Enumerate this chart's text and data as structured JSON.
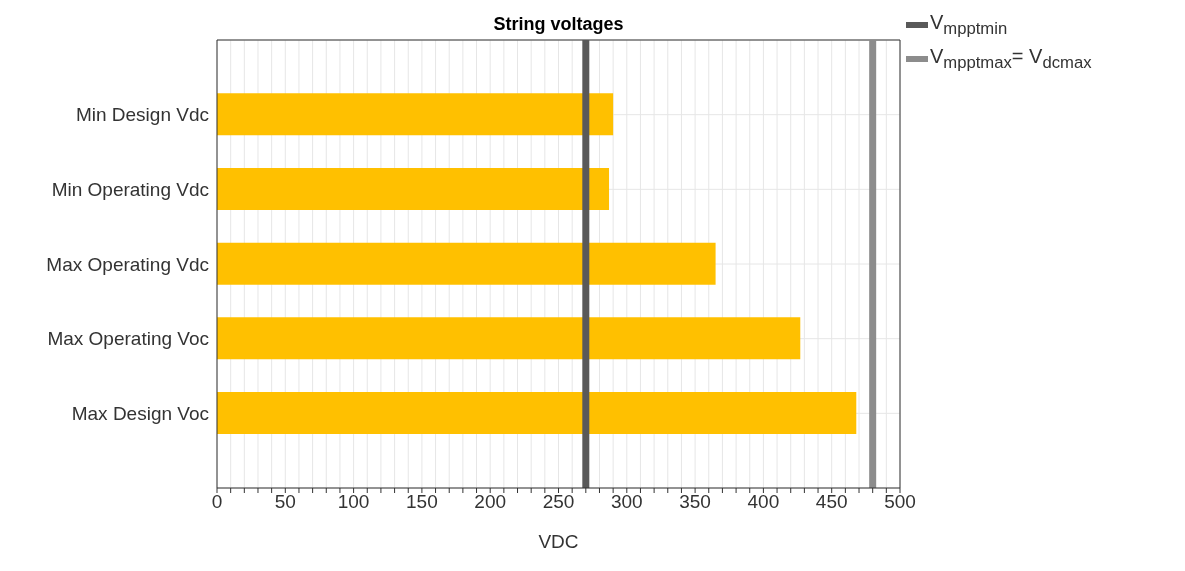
{
  "chart_data": {
    "type": "bar",
    "orientation": "horizontal",
    "title": "String voltages",
    "xlabel": "VDC",
    "categories": [
      "Min Design Vdc",
      "Min Operating Vdc",
      "Max Operating Vdc",
      "Max Operating Voc",
      "Max Design Voc"
    ],
    "values": [
      290,
      287,
      365,
      427,
      468
    ],
    "color": "#ffc000",
    "xlim": [
      0,
      500
    ],
    "xticks": [
      0,
      {
        "value": 10,
        "label": null
      },
      {
        "value": 20,
        "label": null
      },
      {
        "value": 30,
        "label": null
      },
      {
        "value": 40,
        "label": null
      },
      50,
      {
        "value": 60,
        "label": null
      },
      {
        "value": 70,
        "label": null
      },
      {
        "value": 80,
        "label": null
      },
      {
        "value": 90,
        "label": null
      },
      100,
      {
        "value": 110,
        "label": null
      },
      {
        "value": 120,
        "label": null
      },
      {
        "value": 130,
        "label": null
      },
      {
        "value": 140,
        "label": null
      },
      150,
      {
        "value": 160,
        "label": null
      },
      {
        "value": 170,
        "label": null
      },
      {
        "value": 180,
        "label": null
      },
      {
        "value": 190,
        "label": null
      },
      200,
      {
        "value": 210,
        "label": null
      },
      {
        "value": 220,
        "label": null
      },
      {
        "value": 230,
        "label": null
      },
      {
        "value": 240,
        "label": null
      },
      250,
      {
        "value": 260,
        "label": null
      },
      {
        "value": 270,
        "label": null
      },
      {
        "value": 280,
        "label": null
      },
      {
        "value": 290,
        "label": null
      },
      300,
      {
        "value": 310,
        "label": null
      },
      {
        "value": 320,
        "label": null
      },
      {
        "value": 330,
        "label": null
      },
      {
        "value": 340,
        "label": null
      },
      350,
      {
        "value": 360,
        "label": null
      },
      {
        "value": 370,
        "label": null
      },
      {
        "value": 380,
        "label": null
      },
      {
        "value": 390,
        "label": null
      },
      400,
      {
        "value": 410,
        "label": null
      },
      {
        "value": 420,
        "label": null
      },
      {
        "value": 430,
        "label": null
      },
      {
        "value": 440,
        "label": null
      },
      450,
      {
        "value": 460,
        "label": null
      },
      {
        "value": 470,
        "label": null
      },
      {
        "value": 480,
        "label": null
      },
      {
        "value": 490,
        "label": null
      },
      500
    ],
    "ref_lines": [
      {
        "axis": "x",
        "value": 270,
        "label": "V$_{mpptmin}$",
        "color": "#595959"
      },
      {
        "axis": "x",
        "value": 480,
        "label": "V$_{mpptmax}$= V$_{dcmax}$",
        "color": "#8c8c8c"
      }
    ],
    "grid": true,
    "legend": "right"
  }
}
